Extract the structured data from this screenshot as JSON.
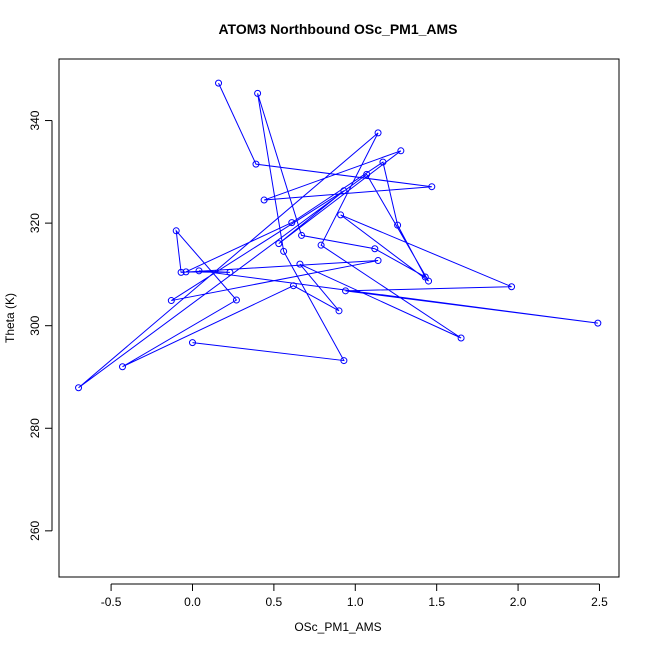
{
  "chart_data": {
    "type": "line",
    "title": "ATOM3 Northbound OSc_PM1_AMS",
    "xlabel": "OSc_PM1_AMS",
    "ylabel": "Theta (K)",
    "xlim": [
      -0.82,
      2.62
    ],
    "ylim": [
      251,
      352
    ],
    "xticks": [
      -0.5,
      0.0,
      0.5,
      1.0,
      1.5,
      2.0,
      2.5
    ],
    "xtick_labels": [
      "-0.5",
      "0.0",
      "0.5",
      "1.0",
      "1.5",
      "2.0",
      "2.5"
    ],
    "yticks": [
      260,
      280,
      300,
      320,
      340
    ],
    "ytick_labels": [
      "260",
      "280",
      "300",
      "320",
      "340"
    ],
    "grid": false,
    "series": [
      {
        "color": "#0000ff",
        "marker": "open-circle",
        "points": [
          [
            0.16,
            347.3
          ],
          [
            0.39,
            331.5
          ],
          [
            1.47,
            327.1
          ],
          [
            0.44,
            324.5
          ],
          [
            1.28,
            334.1
          ],
          [
            0.53,
            316.0
          ],
          [
            0.93,
            326.3
          ],
          [
            -0.13,
            304.9
          ],
          [
            1.14,
            312.7
          ],
          [
            -0.07,
            310.4
          ],
          [
            -0.1,
            318.5
          ],
          [
            0.27,
            305.0
          ],
          [
            -0.43,
            292.0
          ],
          [
            0.62,
            307.8
          ],
          [
            0.9,
            302.9
          ],
          [
            0.66,
            312.0
          ],
          [
            1.65,
            297.6
          ],
          [
            0.79,
            315.7
          ],
          [
            1.14,
            337.6
          ],
          [
            -0.7,
            287.9
          ],
          [
            1.07,
            329.5
          ],
          [
            1.45,
            308.7
          ],
          [
            0.91,
            321.6
          ],
          [
            1.96,
            307.6
          ],
          [
            0.94,
            306.8
          ],
          [
            2.49,
            300.5
          ],
          [
            0.04,
            310.7
          ],
          [
            0.23,
            310.4
          ],
          [
            -0.04,
            310.5
          ],
          [
            0.61,
            320.1
          ],
          [
            1.17,
            331.9
          ],
          [
            1.26,
            319.6
          ],
          [
            1.43,
            309.5
          ],
          [
            1.12,
            315.0
          ],
          [
            0.67,
            317.6
          ],
          [
            0.4,
            345.3
          ],
          [
            0.56,
            314.5
          ],
          [
            0.93,
            293.2
          ],
          [
            0.0,
            296.7
          ]
        ]
      }
    ]
  }
}
